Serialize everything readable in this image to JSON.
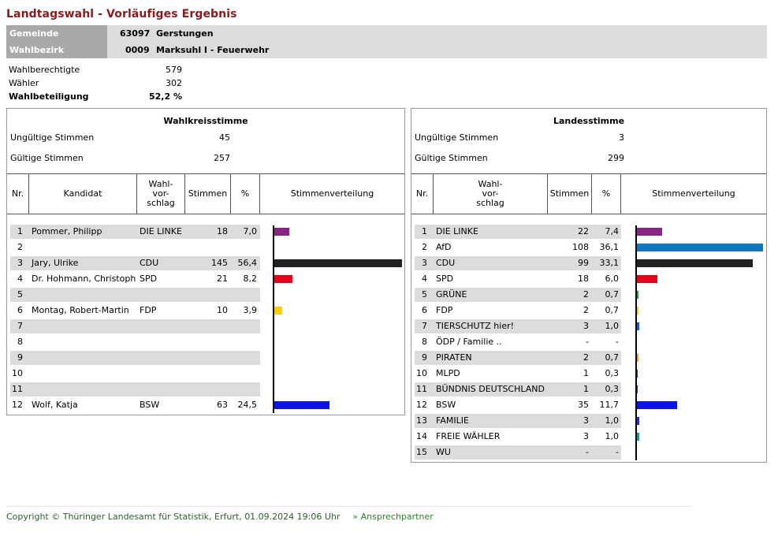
{
  "title": "Landtagswahl - Vorläufiges Ergebnis",
  "header": {
    "gemeinde_label": "Gemeinde",
    "gemeinde_code": "63097",
    "gemeinde_name": "Gerstungen",
    "wahlbezirk_label": "Wahlbezirk",
    "wahlbezirk_code": "0009",
    "wahlbezirk_name": "Marksuhl I - Feuerwehr"
  },
  "stats": {
    "wahlberechtigte_label": "Wahlberechtigte",
    "wahlberechtigte": "579",
    "waehler_label": "Wähler",
    "waehler": "302",
    "beteiligung_label": "Wahlbeteiligung",
    "beteiligung": "52,2 %"
  },
  "wahlkreis": {
    "title": "Wahlkreisstimme",
    "ungueltig_label": "Ungültige Stimmen",
    "ungueltig": "45",
    "gueltig_label": "Gültige Stimmen",
    "gueltig": "257",
    "headers": {
      "nr": "Nr.",
      "kandidat": "Kandidat",
      "wahl1": "Wahl-",
      "wahl2": "vor-",
      "wahl3": "schlag",
      "stimmen": "Stimmen",
      "pct": "%",
      "vert": "Stimmenverteilung"
    },
    "rows": [
      {
        "nr": "1",
        "name": "Pommer, Philipp",
        "party": "DIE LINKE",
        "votes": "18",
        "pct": "7,0",
        "share": 7.0,
        "color": "#8b2286"
      },
      {
        "nr": "2",
        "name": "",
        "party": "",
        "votes": "",
        "pct": "",
        "share": 0,
        "color": ""
      },
      {
        "nr": "3",
        "name": "Jary, Ulrike",
        "party": "CDU",
        "votes": "145",
        "pct": "56,4",
        "share": 56.4,
        "color": "#222222"
      },
      {
        "nr": "4",
        "name": "Dr. Hohmann, Christoph",
        "party": "SPD",
        "votes": "21",
        "pct": "8,2",
        "share": 8.2,
        "color": "#e3001b"
      },
      {
        "nr": "5",
        "name": "",
        "party": "",
        "votes": "",
        "pct": "",
        "share": 0,
        "color": ""
      },
      {
        "nr": "6",
        "name": "Montag, Robert-Martin",
        "party": "FDP",
        "votes": "10",
        "pct": "3,9",
        "share": 3.9,
        "color": "#ffcc00"
      },
      {
        "nr": "7",
        "name": "",
        "party": "",
        "votes": "",
        "pct": "",
        "share": 0,
        "color": ""
      },
      {
        "nr": "8",
        "name": "",
        "party": "",
        "votes": "",
        "pct": "",
        "share": 0,
        "color": ""
      },
      {
        "nr": "9",
        "name": "",
        "party": "",
        "votes": "",
        "pct": "",
        "share": 0,
        "color": ""
      },
      {
        "nr": "10",
        "name": "",
        "party": "",
        "votes": "",
        "pct": "",
        "share": 0,
        "color": ""
      },
      {
        "nr": "11",
        "name": "",
        "party": "",
        "votes": "",
        "pct": "",
        "share": 0,
        "color": ""
      },
      {
        "nr": "12",
        "name": "Wolf, Katja",
        "party": "BSW",
        "votes": "63",
        "pct": "24,5",
        "share": 24.5,
        "color": "#0a14e6"
      }
    ]
  },
  "landes": {
    "title": "Landesstimme",
    "ungueltig_label": "Ungültige Stimmen",
    "ungueltig": "3",
    "gueltig_label": "Gültige Stimmen",
    "gueltig": "299",
    "headers": {
      "nr": "Nr.",
      "wahl1": "Wahl-",
      "wahl2": "vor-",
      "wahl3": "schlag",
      "stimmen": "Stimmen",
      "pct": "%",
      "vert": "Stimmenverteilung"
    },
    "rows": [
      {
        "nr": "1",
        "party": "DIE LINKE",
        "votes": "22",
        "pct": "7,4",
        "share": 7.4,
        "color": "#8b2286"
      },
      {
        "nr": "2",
        "party": "AfD",
        "votes": "108",
        "pct": "36,1",
        "share": 36.1,
        "color": "#0f77c0"
      },
      {
        "nr": "3",
        "party": "CDU",
        "votes": "99",
        "pct": "33,1",
        "share": 33.1,
        "color": "#222222"
      },
      {
        "nr": "4",
        "party": "SPD",
        "votes": "18",
        "pct": "6,0",
        "share": 6.0,
        "color": "#e3001b"
      },
      {
        "nr": "5",
        "party": "GRÜNE",
        "votes": "2",
        "pct": "0,7",
        "share": 0.7,
        "color": "#1aa037"
      },
      {
        "nr": "6",
        "party": "FDP",
        "votes": "2",
        "pct": "0,7",
        "share": 0.7,
        "color": "#ffcc00"
      },
      {
        "nr": "7",
        "party": "TIERSCHUTZ hier!",
        "votes": "3",
        "pct": "1,0",
        "share": 1.0,
        "color": "#1e50d2"
      },
      {
        "nr": "8",
        "party": "ÖDP / Familie ..",
        "votes": "-",
        "pct": "-",
        "share": 0,
        "color": ""
      },
      {
        "nr": "9",
        "party": "PIRATEN",
        "votes": "2",
        "pct": "0,7",
        "share": 0.7,
        "color": "#f5a000"
      },
      {
        "nr": "10",
        "party": "MLPD",
        "votes": "1",
        "pct": "0,3",
        "share": 0.3,
        "color": "#1e3c8c"
      },
      {
        "nr": "11",
        "party": "BÜNDNIS DEUTSCHLAND",
        "votes": "1",
        "pct": "0,3",
        "share": 0.3,
        "color": "#1e3c8c"
      },
      {
        "nr": "12",
        "party": "BSW",
        "votes": "35",
        "pct": "11,7",
        "share": 11.7,
        "color": "#0a14e6"
      },
      {
        "nr": "13",
        "party": "FAMILIE",
        "votes": "3",
        "pct": "1,0",
        "share": 1.0,
        "color": "#2828d2"
      },
      {
        "nr": "14",
        "party": "FREIE WÄHLER",
        "votes": "3",
        "pct": "1,0",
        "share": 1.0,
        "color": "#1a9a8a"
      },
      {
        "nr": "15",
        "party": "WU",
        "votes": "-",
        "pct": "-",
        "share": 0,
        "color": ""
      }
    ]
  },
  "footer": {
    "copyright": "Copyright © Thüringer Landesamt für Statistik, Erfurt, 01.09.2024 19:06 Uhr",
    "link": "» Ansprechpartner"
  }
}
